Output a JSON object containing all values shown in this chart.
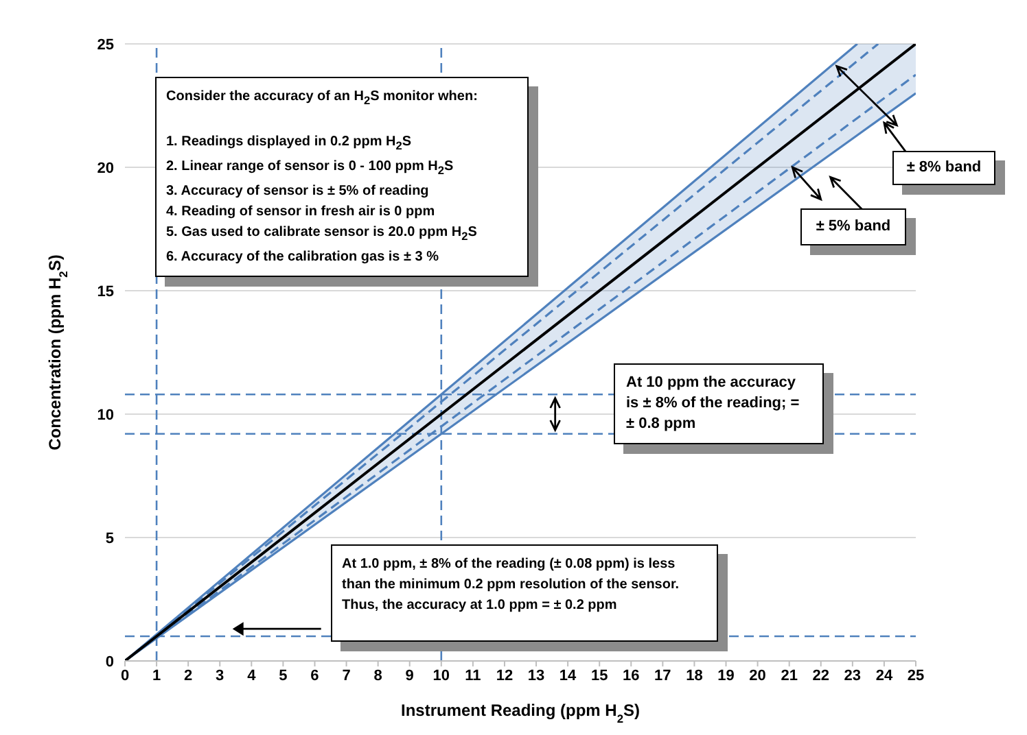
{
  "chart_data": {
    "type": "line",
    "xlabel": "Instrument Reading (ppm H$_{2}$S)",
    "ylabel": "Concentration (ppm H$_{2}$S)",
    "xlim": [
      0,
      25
    ],
    "ylim": [
      0,
      25
    ],
    "xticks": [
      0,
      1,
      2,
      3,
      4,
      5,
      6,
      7,
      8,
      9,
      10,
      11,
      12,
      13,
      14,
      15,
      16,
      17,
      18,
      19,
      20,
      21,
      22,
      23,
      24,
      25
    ],
    "yticks": [
      0,
      5,
      10,
      15,
      20,
      25
    ],
    "grid": "y",
    "marker": "none",
    "series": [
      {
        "color": "#4f81bd",
        "x": [
          0,
          23.15,
          25
        ],
        "values": [
          0,
          21.3,
          23
        ],
        "lower": [
          0,
          21.3,
          23
        ],
        "upper": [
          0,
          25,
          25
        ]
      },
      {
        "color": "#4f81bd",
        "x": [
          0,
          23.15
        ],
        "values": [
          0,
          25
        ]
      },
      {
        "color": "#4f81bd",
        "line_style": "dashed",
        "x": [
          0,
          23.81
        ],
        "values": [
          0,
          25
        ]
      },
      {
        "color": "#4f81bd",
        "line_style": "dashed",
        "x": [
          0,
          25
        ],
        "values": [
          0,
          23.75
        ]
      },
      {
        "color": "#000000",
        "x": [
          0,
          25
        ],
        "values": [
          0,
          25
        ]
      }
    ],
    "ref_lines": [
      {
        "axis": "x",
        "value": 10,
        "color": "#4f81bd",
        "line_style": "dashed"
      },
      {
        "axis": "y",
        "value": 10.8,
        "color": "#4f81bd",
        "line_style": "dashed"
      },
      {
        "axis": "y",
        "value": 9.2,
        "color": "#4f81bd",
        "line_style": "dashed"
      },
      {
        "axis": "x",
        "value": 1,
        "color": "#4f81bd",
        "line_style": "dashed"
      },
      {
        "axis": "y",
        "value": 1,
        "color": "#4f81bd",
        "line_style": "dashed"
      }
    ],
    "annotations": [
      "Consider the accuracy of an H$_{2}$S monitor when:\n\n1.  Readings displayed in 0.2 ppm H$_{2}$S\n2.  Linear range of sensor is 0 - 100 ppm H$_{2}$S\n3.  Accuracy of sensor is ± 5% of reading\n4.  Reading of sensor in fresh air is 0 ppm\n5.  Gas used to calibrate sensor is 20.0 ppm H$_{2}$S\n6.  Accuracy of the calibration gas is ±  3 %",
      "At 10 ppm the accuracy is ± 8% of the reading; = ± 0.8 ppm",
      "At 1.0 ppm, ± 8% of the reading (± 0.08 ppm) is less than the minimum 0.2 ppm resolution of the sensor.  Thus, the accuracy at 1.0 ppm = ± 0.2 ppm",
      "± 8%  band",
      "± 5% band"
    ]
  }
}
